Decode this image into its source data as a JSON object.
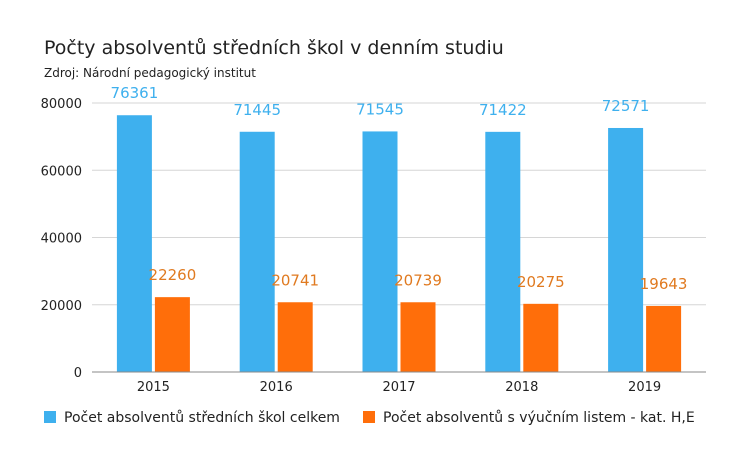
{
  "chart_data": {
    "type": "bar",
    "title": "Počty absolventů středních škol v denním studiu",
    "subtitle": "Zdroj: Národní pedagogický institut",
    "categories": [
      "2015",
      "2016",
      "2017",
      "2018",
      "2019"
    ],
    "series": [
      {
        "name": "Počet absolventů středních škol celkem",
        "values": [
          76361,
          71445,
          71545,
          71422,
          72571
        ],
        "color": "#3eb0ee",
        "label_color": "#3eb0ee"
      },
      {
        "name": "Počet absolventů s výučním listem - kat. H,E",
        "values": [
          22260,
          20741,
          20739,
          20275,
          19643
        ],
        "color": "#ff6e0a",
        "label_color": "#e07a20"
      }
    ],
    "ylim": [
      0,
      80000
    ],
    "yticks": [
      "0",
      "20000",
      "40000",
      "60000",
      "80000"
    ],
    "ytick_values": [
      0,
      20000,
      40000,
      60000,
      80000
    ],
    "grid": true,
    "legend_position": "bottom"
  }
}
